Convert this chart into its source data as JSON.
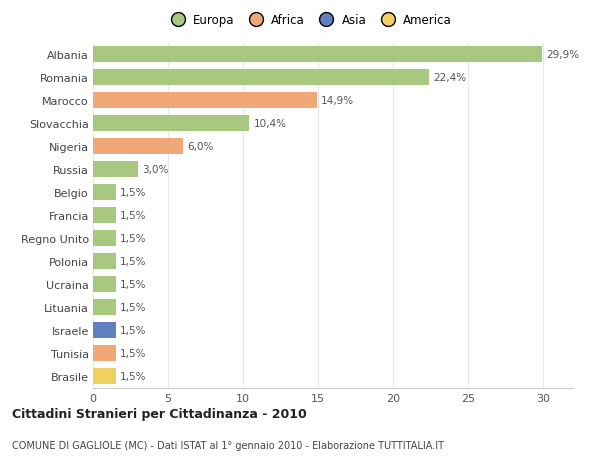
{
  "countries": [
    "Albania",
    "Romania",
    "Marocco",
    "Slovacchia",
    "Nigeria",
    "Russia",
    "Belgio",
    "Francia",
    "Regno Unito",
    "Polonia",
    "Ucraina",
    "Lituania",
    "Israele",
    "Tunisia",
    "Brasile"
  ],
  "values": [
    29.9,
    22.4,
    14.9,
    10.4,
    6.0,
    3.0,
    1.5,
    1.5,
    1.5,
    1.5,
    1.5,
    1.5,
    1.5,
    1.5,
    1.5
  ],
  "labels": [
    "29,9%",
    "22,4%",
    "14,9%",
    "10,4%",
    "6,0%",
    "3,0%",
    "1,5%",
    "1,5%",
    "1,5%",
    "1,5%",
    "1,5%",
    "1,5%",
    "1,5%",
    "1,5%",
    "1,5%"
  ],
  "colors": [
    "#a8c880",
    "#a8c880",
    "#f0a878",
    "#a8c880",
    "#f0a878",
    "#a8c880",
    "#a8c880",
    "#a8c880",
    "#a8c880",
    "#a8c880",
    "#a8c880",
    "#a8c880",
    "#6080c0",
    "#f0a878",
    "#f0d060"
  ],
  "legend_labels": [
    "Europa",
    "Africa",
    "Asia",
    "America"
  ],
  "legend_colors": [
    "#a8c880",
    "#f0a878",
    "#6080c0",
    "#f0d060"
  ],
  "title": "Cittadini Stranieri per Cittadinanza - 2010",
  "subtitle": "COMUNE DI GAGLIOLE (MC) - Dati ISTAT al 1° gennaio 2010 - Elaborazione TUTTITALIA.IT",
  "xlim": [
    0,
    32
  ],
  "background_color": "#ffffff",
  "grid_color": "#e8e8e8"
}
